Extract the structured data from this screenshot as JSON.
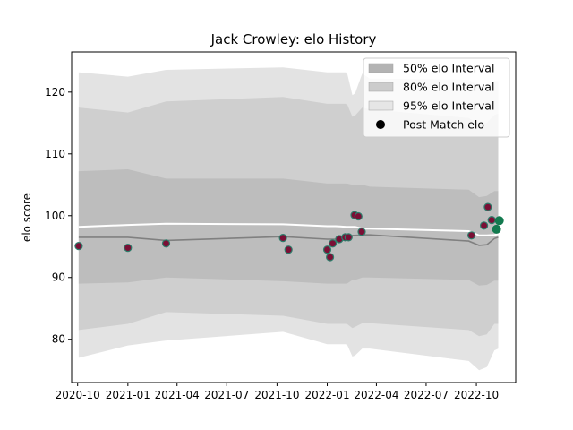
{
  "chart_data": {
    "type": "line",
    "title": "Jack Crowley: elo History",
    "xlabel": "",
    "ylabel": "elo score",
    "xlim": [
      "2020-09-20",
      "2022-12-12"
    ],
    "ylim": [
      73.0,
      126.5
    ],
    "x_ticks": [
      "2020-10-01",
      "2021-01-01",
      "2021-04-01",
      "2021-07-01",
      "2021-10-01",
      "2022-01-01",
      "2022-04-01",
      "2022-07-01",
      "2022-10-01"
    ],
    "x_tick_labels": [
      "2020-10",
      "2021-01",
      "2021-04",
      "2021-07",
      "2021-10",
      "2022-01",
      "2022-04",
      "2022-07",
      "2022-10"
    ],
    "y_ticks": [
      80,
      90,
      100,
      110,
      120
    ],
    "y_tick_labels": [
      "80",
      "90",
      "100",
      "110",
      "120"
    ],
    "grid": false,
    "legend_position": "top-right",
    "legend": [
      {
        "label": "50% elo Interval",
        "kind": "patch",
        "color": "#b3b3b3"
      },
      {
        "label": "80% elo Interval",
        "kind": "patch",
        "color": "#cccccc"
      },
      {
        "label": "95% elo Interval",
        "kind": "patch",
        "color": "#e6e6e6"
      },
      {
        "label": "Post Match elo",
        "kind": "marker",
        "color": "#000000"
      }
    ],
    "colors": {
      "band95": "#e3e3e3",
      "band80": "#cfcfcf",
      "band50": "#bdbdbd",
      "median": "#808080",
      "mean": "#ffffff",
      "point_fill": "#7a0f35",
      "point_edge": "#2e7d6b",
      "future_point": "#137a4f"
    },
    "series": [
      {
        "name": "95% elo Interval",
        "x": [
          "2020-10-03",
          "2021-01-01",
          "2021-03-12",
          "2021-10-12",
          "2022-01-01",
          "2022-01-16",
          "2022-02-06",
          "2022-02-16",
          "2022-02-21",
          "2022-03-06",
          "2022-03-20",
          "2022-09-17",
          "2022-10-06",
          "2022-10-20",
          "2022-11-03",
          "2022-11-10"
        ],
        "upper": [
          123.2,
          122.5,
          123.6,
          124.0,
          123.2,
          123.2,
          123.2,
          119.5,
          119.8,
          123.0,
          122.2,
          122.0,
          121.0,
          121.0,
          121.8,
          121.8
        ],
        "lower": [
          77.0,
          79.0,
          79.8,
          81.2,
          79.2,
          79.2,
          79.2,
          77.2,
          77.4,
          78.5,
          78.5,
          76.5,
          75.0,
          75.5,
          78.2,
          78.5
        ]
      },
      {
        "name": "80% elo Interval",
        "x": [
          "2020-10-03",
          "2021-01-01",
          "2021-03-12",
          "2021-10-12",
          "2022-01-01",
          "2022-01-16",
          "2022-02-06",
          "2022-02-16",
          "2022-02-21",
          "2022-03-06",
          "2022-03-20",
          "2022-09-17",
          "2022-10-06",
          "2022-10-20",
          "2022-11-03",
          "2022-11-10"
        ],
        "upper": [
          117.5,
          116.7,
          118.5,
          119.2,
          118.1,
          118.1,
          118.1,
          116.0,
          116.2,
          117.5,
          117.2,
          115.8,
          114.8,
          115.0,
          116.3,
          116.5
        ],
        "lower": [
          81.5,
          82.5,
          84.4,
          83.8,
          82.5,
          82.5,
          82.5,
          81.8,
          82.0,
          82.6,
          82.6,
          81.5,
          80.5,
          80.8,
          82.5,
          82.5
        ]
      },
      {
        "name": "50% elo Interval",
        "x": [
          "2020-10-03",
          "2021-01-01",
          "2021-03-12",
          "2021-10-12",
          "2022-01-01",
          "2022-01-16",
          "2022-02-06",
          "2022-02-16",
          "2022-02-21",
          "2022-03-06",
          "2022-03-20",
          "2022-09-17",
          "2022-10-06",
          "2022-10-20",
          "2022-11-03",
          "2022-11-10"
        ],
        "upper": [
          107.2,
          107.5,
          106.0,
          106.0,
          105.2,
          105.2,
          105.2,
          105.0,
          105.0,
          105.0,
          104.7,
          104.2,
          103.0,
          103.2,
          104.0,
          104.0
        ],
        "lower": [
          89.0,
          89.2,
          90.0,
          89.4,
          89.0,
          89.0,
          89.0,
          89.6,
          89.6,
          90.0,
          90.0,
          89.6,
          88.7,
          88.8,
          89.5,
          89.5
        ]
      },
      {
        "name": "Median elo",
        "x": [
          "2020-10-03",
          "2021-01-01",
          "2021-03-12",
          "2021-10-12",
          "2022-01-01",
          "2022-01-16",
          "2022-02-06",
          "2022-02-16",
          "2022-02-21",
          "2022-03-06",
          "2022-03-20",
          "2022-09-17",
          "2022-10-06",
          "2022-10-20",
          "2022-11-03",
          "2022-11-10"
        ],
        "y": [
          96.5,
          96.5,
          96.0,
          96.6,
          96.2,
          96.2,
          96.2,
          96.8,
          96.8,
          96.9,
          96.9,
          95.9,
          95.2,
          95.3,
          96.3,
          96.5
        ]
      },
      {
        "name": "Mean elo",
        "x": [
          "2020-10-03",
          "2021-01-01",
          "2021-03-12",
          "2021-10-12",
          "2022-01-01",
          "2022-01-16",
          "2022-02-06",
          "2022-02-16",
          "2022-02-21",
          "2022-03-06",
          "2022-03-20",
          "2022-09-17",
          "2022-10-06",
          "2022-10-20",
          "2022-11-03",
          "2022-11-10"
        ],
        "y": [
          98.2,
          98.5,
          98.7,
          98.6,
          98.3,
          98.3,
          98.2,
          98.2,
          98.2,
          97.9,
          97.9,
          97.5,
          96.8,
          96.8,
          96.9,
          97.0
        ]
      },
      {
        "name": "Post Match elo",
        "points": [
          {
            "x": "2020-10-03",
            "y": 95.1
          },
          {
            "x": "2021-01-01",
            "y": 94.8
          },
          {
            "x": "2021-03-12",
            "y": 95.5
          },
          {
            "x": "2021-10-12",
            "y": 96.4
          },
          {
            "x": "2021-10-22",
            "y": 94.5
          },
          {
            "x": "2022-01-01",
            "y": 94.5
          },
          {
            "x": "2022-01-06",
            "y": 93.3
          },
          {
            "x": "2022-01-11",
            "y": 95.5
          },
          {
            "x": "2022-01-23",
            "y": 96.2
          },
          {
            "x": "2022-02-03",
            "y": 96.5
          },
          {
            "x": "2022-02-09",
            "y": 96.5
          },
          {
            "x": "2022-02-20",
            "y": 100.1
          },
          {
            "x": "2022-02-27",
            "y": 99.9
          },
          {
            "x": "2022-03-05",
            "y": 97.4
          },
          {
            "x": "2022-09-22",
            "y": 96.8
          },
          {
            "x": "2022-10-15",
            "y": 98.4
          },
          {
            "x": "2022-10-22",
            "y": 101.4
          },
          {
            "x": "2022-10-29",
            "y": 99.3
          }
        ]
      },
      {
        "name": "Upcoming",
        "points": [
          {
            "x": "2022-11-07",
            "y": 97.8
          },
          {
            "x": "2022-11-12",
            "y": 99.2
          }
        ]
      }
    ]
  }
}
